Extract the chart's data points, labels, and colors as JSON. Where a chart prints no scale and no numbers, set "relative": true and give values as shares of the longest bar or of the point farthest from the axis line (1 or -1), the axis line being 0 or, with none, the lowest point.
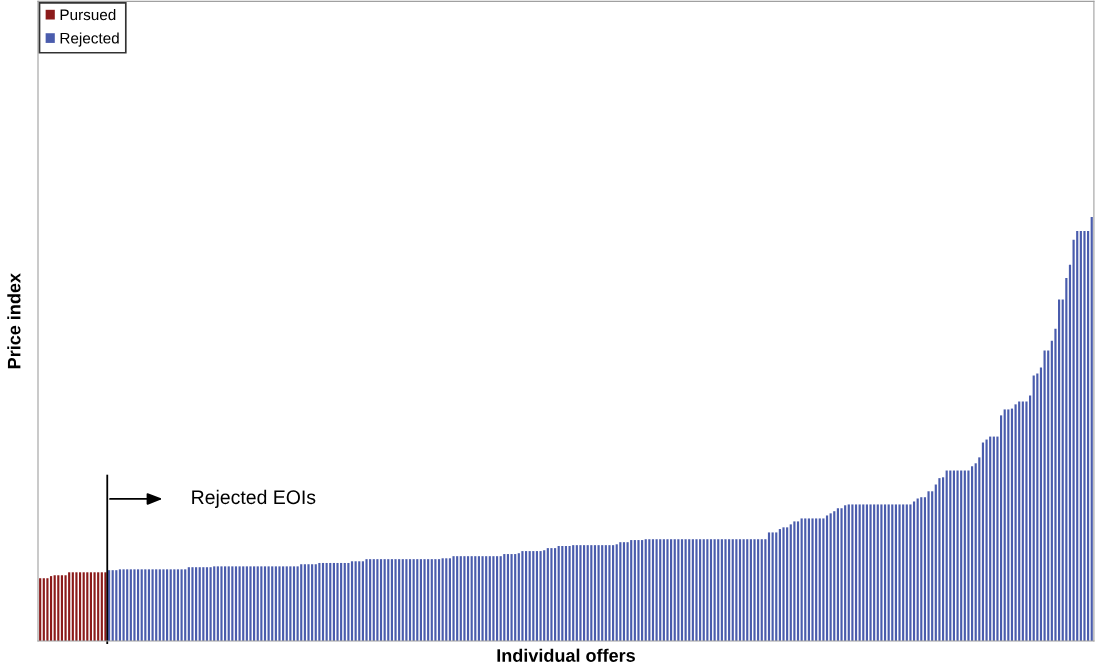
{
  "chart_data": {
    "type": "bar",
    "relative": true,
    "xlabel": "Individual offers",
    "ylabel": "Price index",
    "legend": "top left",
    "grid": false,
    "stacked": true,
    "annotations": [
      "Rejected EOIs"
    ],
    "categories": [
      null,
      null,
      null,
      null,
      null,
      null,
      null,
      null,
      null,
      null,
      null,
      null,
      null,
      null,
      null,
      null,
      null,
      null,
      null,
      null,
      null,
      null,
      null,
      null,
      null,
      null,
      null,
      null,
      null,
      null,
      null,
      null,
      null,
      null,
      null,
      null,
      null,
      null,
      null,
      null,
      null,
      null,
      null,
      null,
      null,
      null,
      null,
      null,
      null,
      null,
      null,
      null,
      null,
      null,
      null,
      null,
      null,
      null,
      null,
      null,
      null,
      null,
      null,
      null,
      null,
      null,
      null,
      null,
      null,
      null,
      null,
      null,
      null,
      null,
      null,
      null,
      null,
      null,
      null,
      null,
      null,
      null,
      null,
      null,
      null,
      null,
      null,
      null,
      null,
      null,
      null,
      null,
      null,
      null,
      null,
      null,
      null,
      null,
      null,
      null,
      null,
      null,
      null,
      null,
      null,
      null,
      null,
      null,
      null,
      null,
      null,
      null,
      null,
      null,
      null,
      null,
      null,
      null,
      null,
      null,
      null,
      null,
      null,
      null,
      null,
      null,
      null,
      null,
      null,
      null,
      null,
      null,
      null,
      null,
      null,
      null,
      null,
      null,
      null,
      null,
      null,
      null,
      null,
      null,
      null,
      null,
      null,
      null,
      null,
      null,
      null,
      null,
      null,
      null,
      null,
      null,
      null,
      null,
      null,
      null,
      null,
      null,
      null,
      null,
      null,
      null,
      null,
      null,
      null,
      null,
      null,
      null,
      null,
      null,
      null,
      null,
      null,
      null,
      null,
      null,
      null,
      null,
      null,
      null,
      null,
      null,
      null,
      null,
      null,
      null,
      null,
      null,
      null,
      null,
      null,
      null,
      null,
      null,
      null,
      null,
      null,
      null,
      null,
      null,
      null,
      null,
      null,
      null,
      null,
      null,
      null,
      null,
      null,
      null,
      null,
      null,
      null,
      null,
      null,
      null,
      null,
      null,
      null,
      null,
      null,
      null,
      null,
      null,
      null,
      null,
      null,
      null,
      null,
      null,
      null,
      null,
      null,
      null,
      null,
      null,
      null,
      null,
      null,
      null,
      null,
      null,
      null,
      null,
      null,
      null,
      null,
      null,
      null,
      null,
      null,
      null,
      null,
      null,
      null,
      null,
      null,
      null,
      null,
      null,
      null,
      null,
      null,
      null,
      null,
      null,
      null,
      null,
      null,
      null,
      null,
      null,
      null,
      null,
      null,
      null,
      null,
      null,
      null,
      null,
      null,
      null,
      null,
      null,
      null,
      null,
      null
    ],
    "series": [
      {
        "name": "Pursued",
        "color": "#8b1a1a",
        "values": [
          0.148,
          0.148,
          0.148,
          0.153,
          0.155,
          0.155,
          0.155,
          0.155,
          0.162,
          0.162,
          0.162,
          0.162,
          0.162,
          0.162,
          0.162,
          0.162,
          0.162,
          0.162,
          0.162,
          null,
          null,
          null,
          null,
          null,
          null,
          null,
          null,
          null,
          null,
          null,
          null,
          null,
          null,
          null,
          null,
          null,
          null,
          null,
          null,
          null,
          null,
          null,
          null,
          null,
          null,
          null,
          null,
          null,
          null,
          null,
          null,
          null,
          null,
          null,
          null,
          null,
          null,
          null,
          null,
          null,
          null,
          null,
          null,
          null,
          null,
          null,
          null,
          null,
          null,
          null,
          null,
          null,
          null,
          null,
          null,
          null,
          null,
          null,
          null,
          null,
          null,
          null,
          null,
          null,
          null,
          null,
          null,
          null,
          null,
          null,
          null,
          null,
          null,
          null,
          null,
          null,
          null,
          null,
          null,
          null,
          null,
          null,
          null,
          null,
          null,
          null,
          null,
          null,
          null,
          null,
          null,
          null,
          null,
          null,
          null,
          null,
          null,
          null,
          null,
          null,
          null,
          null,
          null,
          null,
          null,
          null,
          null,
          null,
          null,
          null,
          null,
          null,
          null,
          null,
          null,
          null,
          null,
          null,
          null,
          null,
          null,
          null,
          null,
          null,
          null,
          null,
          null,
          null,
          null,
          null,
          null,
          null,
          null,
          null,
          null,
          null,
          null,
          null,
          null,
          null,
          null,
          null,
          null,
          null,
          null,
          null,
          null,
          null,
          null,
          null,
          null,
          null,
          null,
          null,
          null,
          null,
          null,
          null,
          null,
          null,
          null,
          null,
          null,
          null,
          null,
          null,
          null,
          null,
          null,
          null,
          null,
          null,
          null,
          null,
          null,
          null,
          null,
          null,
          null,
          null,
          null,
          null,
          null,
          null,
          null,
          null,
          null,
          null,
          null,
          null,
          null,
          null,
          null,
          null,
          null,
          null,
          null,
          null,
          null,
          null,
          null,
          null,
          null,
          null,
          null,
          null,
          null,
          null,
          null,
          null,
          null,
          null,
          null,
          null,
          null,
          null,
          null,
          null,
          null,
          null,
          null,
          null,
          null,
          null,
          null,
          null,
          null,
          null,
          null,
          null,
          null,
          null,
          null,
          null,
          null,
          null,
          null,
          null,
          null,
          null,
          null,
          null,
          null,
          null,
          null,
          null,
          null,
          null,
          null,
          null,
          null,
          null,
          null,
          null,
          null,
          null,
          null,
          null,
          null,
          null,
          null,
          null,
          null,
          null,
          null,
          null,
          null,
          null,
          null,
          null,
          null
        ]
      },
      {
        "name": "Rejected",
        "color": "#4a5cad",
        "values": [
          null,
          null,
          null,
          null,
          null,
          null,
          null,
          null,
          null,
          null,
          null,
          null,
          null,
          null,
          null,
          null,
          null,
          null,
          null,
          0.167,
          0.167,
          0.167,
          0.169,
          0.169,
          0.169,
          0.169,
          0.169,
          0.169,
          0.169,
          0.169,
          0.169,
          0.169,
          0.169,
          0.169,
          0.169,
          0.169,
          0.169,
          0.169,
          0.169,
          0.169,
          0.169,
          0.174,
          0.174,
          0.174,
          0.174,
          0.174,
          0.174,
          0.174,
          0.176,
          0.176,
          0.176,
          0.176,
          0.176,
          0.176,
          0.176,
          0.176,
          0.176,
          0.176,
          0.176,
          0.176,
          0.176,
          0.176,
          0.176,
          0.176,
          0.176,
          0.176,
          0.176,
          0.176,
          0.176,
          0.176,
          0.176,
          0.176,
          0.181,
          0.181,
          0.181,
          0.181,
          0.181,
          0.184,
          0.184,
          0.184,
          0.184,
          0.184,
          0.184,
          0.184,
          0.184,
          0.184,
          0.188,
          0.188,
          0.188,
          0.188,
          0.193,
          0.193,
          0.193,
          0.193,
          0.193,
          0.193,
          0.193,
          0.193,
          0.193,
          0.193,
          0.193,
          0.193,
          0.193,
          0.193,
          0.193,
          0.193,
          0.193,
          0.193,
          0.193,
          0.193,
          0.193,
          0.195,
          0.195,
          0.195,
          0.2,
          0.2,
          0.2,
          0.2,
          0.2,
          0.2,
          0.2,
          0.2,
          0.2,
          0.2,
          0.2,
          0.2,
          0.2,
          0.2,
          0.205,
          0.205,
          0.205,
          0.205,
          0.207,
          0.212,
          0.212,
          0.212,
          0.212,
          0.212,
          0.212,
          0.214,
          0.219,
          0.219,
          0.219,
          0.224,
          0.224,
          0.224,
          0.224,
          0.226,
          0.226,
          0.226,
          0.226,
          0.226,
          0.226,
          0.226,
          0.226,
          0.226,
          0.226,
          0.226,
          0.226,
          0.228,
          0.233,
          0.233,
          0.233,
          0.238,
          0.238,
          0.238,
          0.238,
          0.24,
          0.24,
          0.24,
          0.24,
          0.24,
          0.24,
          0.24,
          0.24,
          0.24,
          0.24,
          0.24,
          0.24,
          0.24,
          0.24,
          0.24,
          0.24,
          0.24,
          0.24,
          0.24,
          0.24,
          0.24,
          0.24,
          0.24,
          0.24,
          0.24,
          0.24,
          0.24,
          0.24,
          0.24,
          0.24,
          0.24,
          0.24,
          0.24,
          0.24,
          0.256,
          0.256,
          0.256,
          0.264,
          0.268,
          0.268,
          0.275,
          0.282,
          0.282,
          0.289,
          0.289,
          0.289,
          0.289,
          0.289,
          0.289,
          0.289,
          0.296,
          0.301,
          0.306,
          0.313,
          0.313,
          0.32,
          0.322,
          0.322,
          0.322,
          0.322,
          0.322,
          0.322,
          0.322,
          0.322,
          0.322,
          0.322,
          0.322,
          0.322,
          0.322,
          0.322,
          0.322,
          0.322,
          0.322,
          0.322,
          0.329,
          0.336,
          0.339,
          0.339,
          0.353,
          0.353,
          0.369,
          0.384,
          0.386,
          0.402,
          0.402,
          0.402,
          0.402,
          0.402,
          0.402,
          0.402,
          0.412,
          0.419,
          0.433,
          0.468,
          0.475,
          0.482,
          0.482,
          0.482,
          0.532,
          0.546,
          0.546,
          0.548,
          0.558,
          0.565,
          0.565,
          0.565,
          0.579,
          0.626,
          0.631,
          0.645,
          0.685,
          0.685,
          0.708,
          0.736,
          0.805,
          0.805,
          0.856,
          0.887,
          0.946,
          0.967,
          0.967,
          0.967,
          0.967,
          1
        ]
      }
    ]
  }
}
